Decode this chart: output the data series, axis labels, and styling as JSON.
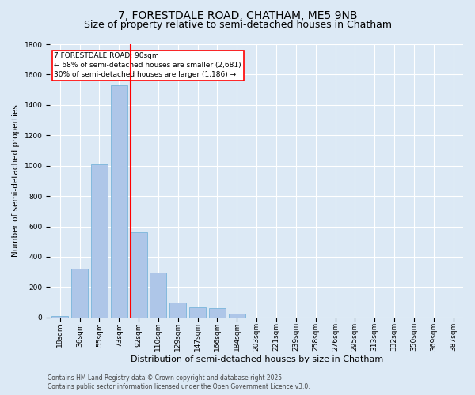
{
  "title1": "7, FORESTDALE ROAD, CHATHAM, ME5 9NB",
  "title2": "Size of property relative to semi-detached houses in Chatham",
  "xlabel": "Distribution of semi-detached houses by size in Chatham",
  "ylabel": "Number of semi-detached properties",
  "categories": [
    "18sqm",
    "36sqm",
    "55sqm",
    "73sqm",
    "92sqm",
    "110sqm",
    "129sqm",
    "147sqm",
    "166sqm",
    "184sqm",
    "203sqm",
    "221sqm",
    "239sqm",
    "258sqm",
    "276sqm",
    "295sqm",
    "313sqm",
    "332sqm",
    "350sqm",
    "369sqm",
    "387sqm"
  ],
  "values": [
    8,
    320,
    1010,
    1530,
    560,
    295,
    100,
    65,
    60,
    25,
    0,
    0,
    0,
    0,
    0,
    0,
    0,
    0,
    0,
    0,
    0
  ],
  "bar_color": "#aec6e8",
  "bar_edge_color": "#6aaed6",
  "red_line_x": 3.6,
  "annotation_box_text": "7 FORESTDALE ROAD: 90sqm\n← 68% of semi-detached houses are smaller (2,681)\n30% of semi-detached houses are larger (1,186) →",
  "ylim": [
    0,
    1800
  ],
  "yticks": [
    0,
    200,
    400,
    600,
    800,
    1000,
    1200,
    1400,
    1600,
    1800
  ],
  "background_color": "#dce9f5",
  "footer_line1": "Contains HM Land Registry data © Crown copyright and database right 2025.",
  "footer_line2": "Contains public sector information licensed under the Open Government Licence v3.0.",
  "title1_fontsize": 10,
  "title2_fontsize": 9,
  "annotation_fontsize": 6.5,
  "tick_fontsize": 6.5,
  "ylabel_fontsize": 7.5,
  "xlabel_fontsize": 8,
  "footer_fontsize": 5.5
}
